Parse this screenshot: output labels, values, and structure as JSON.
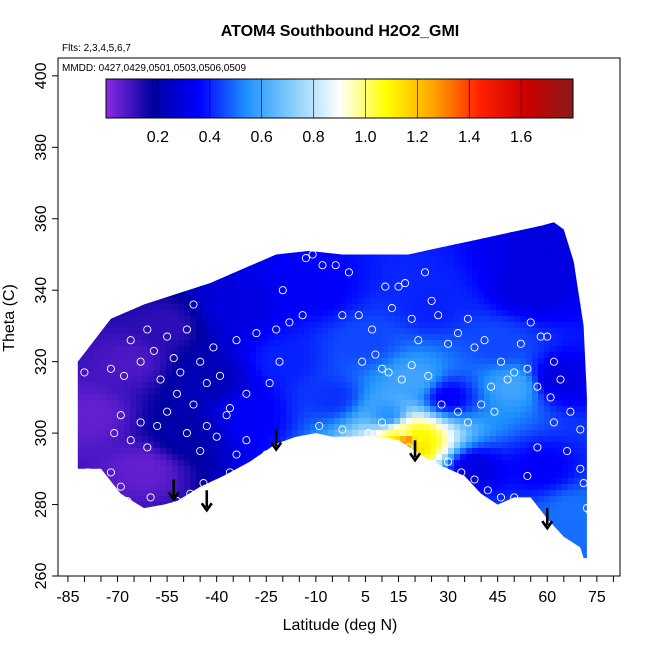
{
  "chart_data": {
    "type": "heatmap",
    "title": "ATOM4 Southbound H2O2_GMI",
    "flights_label": "Flts: 2,3,4,5,6,7",
    "dates_label": "MMDD: 0427,0429,0501,0503,0506,0509",
    "xlabel": "Latitude (deg N)",
    "ylabel": "Theta (C)",
    "xlim": [
      -88,
      82
    ],
    "ylim": [
      260,
      405
    ],
    "x_ticks": [
      -85,
      -70,
      -55,
      -40,
      -25,
      -10,
      5,
      15,
      30,
      45,
      60,
      75
    ],
    "x_tick_labels": [
      "-85",
      "-70",
      "-55",
      "-40",
      "-25",
      "-10",
      "5",
      "15",
      "30",
      "45",
      "60",
      "75"
    ],
    "x_minor_step": 5,
    "y_ticks": [
      260,
      280,
      300,
      320,
      340,
      360,
      380,
      400
    ],
    "y_tick_labels": [
      "260",
      "280",
      "300",
      "320",
      "340",
      "360",
      "380",
      "400"
    ],
    "colorbar": {
      "range": [
        0,
        1.8
      ],
      "ticks": [
        0.2,
        0.4,
        0.6,
        0.8,
        1.0,
        1.2,
        1.4,
        1.6
      ],
      "tick_labels": [
        "0.2",
        "0.4",
        "0.6",
        "0.8",
        "1.0",
        "1.2",
        "1.4",
        "1.6"
      ],
      "colors": [
        "#8a2be2",
        "#0000a0",
        "#0000ff",
        "#1e90ff",
        "#87cefa",
        "#ffffff",
        "#ffff00",
        "#ffa500",
        "#ff2000",
        "#cc0000",
        "#8b1a1a"
      ]
    },
    "lower_boundary_theta": [
      [
        -82,
        290
      ],
      [
        -75,
        290
      ],
      [
        -69,
        283
      ],
      [
        -62,
        279
      ],
      [
        -56,
        280
      ],
      [
        -52,
        281
      ],
      [
        -45,
        285
      ],
      [
        -38,
        288
      ],
      [
        -30,
        292
      ],
      [
        -22,
        297
      ],
      [
        -16,
        299
      ],
      [
        -10,
        300
      ],
      [
        -5,
        299
      ],
      [
        0,
        299
      ],
      [
        5,
        299
      ],
      [
        10,
        299
      ],
      [
        15,
        298
      ],
      [
        20,
        295
      ],
      [
        25,
        292
      ],
      [
        30,
        290
      ],
      [
        35,
        288
      ],
      [
        40,
        283
      ],
      [
        45,
        280
      ],
      [
        50,
        282
      ],
      [
        55,
        282
      ],
      [
        60,
        276
      ],
      [
        65,
        271
      ],
      [
        70,
        268
      ],
      [
        71,
        265
      ]
    ],
    "upper_boundary_theta": [
      [
        -82,
        320
      ],
      [
        -72,
        332
      ],
      [
        -62,
        336
      ],
      [
        -52,
        339
      ],
      [
        -42,
        342
      ],
      [
        -32,
        346
      ],
      [
        -22,
        350
      ],
      [
        -12,
        351
      ],
      [
        -2,
        350
      ],
      [
        8,
        350
      ],
      [
        18,
        350
      ],
      [
        28,
        352
      ],
      [
        38,
        354
      ],
      [
        48,
        356
      ],
      [
        58,
        358
      ],
      [
        62,
        359
      ],
      [
        65,
        357
      ],
      [
        68,
        348
      ],
      [
        71,
        330
      ],
      [
        72,
        310
      ],
      [
        72,
        290
      ],
      [
        72,
        265
      ]
    ],
    "field_samples": [
      {
        "lat": -78,
        "theta": 305,
        "value": 0.05
      },
      {
        "lat": -66,
        "theta": 320,
        "value": 0.08
      },
      {
        "lat": -62,
        "theta": 290,
        "value": 0.05
      },
      {
        "lat": -55,
        "theta": 330,
        "value": 0.12
      },
      {
        "lat": -50,
        "theta": 300,
        "value": 0.2
      },
      {
        "lat": -42,
        "theta": 315,
        "value": 0.22
      },
      {
        "lat": -35,
        "theta": 335,
        "value": 0.3
      },
      {
        "lat": -30,
        "theta": 305,
        "value": 0.35
      },
      {
        "lat": -20,
        "theta": 320,
        "value": 0.4
      },
      {
        "lat": -10,
        "theta": 340,
        "value": 0.35
      },
      {
        "lat": -5,
        "theta": 310,
        "value": 0.42
      },
      {
        "lat": 5,
        "theta": 325,
        "value": 0.45
      },
      {
        "lat": 12,
        "theta": 305,
        "value": 0.55
      },
      {
        "lat": 17,
        "theta": 300,
        "value": 0.95
      },
      {
        "lat": 18,
        "theta": 298,
        "value": 1.4
      },
      {
        "lat": 20,
        "theta": 298,
        "value": 1.05
      },
      {
        "lat": 20,
        "theta": 315,
        "value": 0.6
      },
      {
        "lat": 25,
        "theta": 335,
        "value": 0.4
      },
      {
        "lat": 30,
        "theta": 310,
        "value": 0.35
      },
      {
        "lat": 38,
        "theta": 290,
        "value": 0.3
      },
      {
        "lat": 45,
        "theta": 325,
        "value": 0.45
      },
      {
        "lat": 50,
        "theta": 313,
        "value": 0.6
      },
      {
        "lat": 55,
        "theta": 340,
        "value": 0.3
      },
      {
        "lat": 58,
        "theta": 290,
        "value": 0.35
      },
      {
        "lat": 63,
        "theta": 315,
        "value": 0.3
      },
      {
        "lat": 68,
        "theta": 278,
        "value": 0.5
      },
      {
        "lat": 60,
        "theta": 350,
        "value": 0.3
      }
    ],
    "sample_points": [
      [
        -80,
        317
      ],
      [
        -72,
        318
      ],
      [
        -68,
        316
      ],
      [
        -66,
        326
      ],
      [
        -63,
        320
      ],
      [
        -61,
        329
      ],
      [
        -59,
        323
      ],
      [
        -57,
        315
      ],
      [
        -55,
        327
      ],
      [
        -53,
        321
      ],
      [
        -51,
        317
      ],
      [
        -49,
        329
      ],
      [
        -47,
        336
      ],
      [
        -45,
        320
      ],
      [
        -43,
        314
      ],
      [
        -41,
        324
      ],
      [
        -39,
        316
      ],
      [
        -36,
        307
      ],
      [
        -34,
        326
      ],
      [
        -31,
        311
      ],
      [
        -28,
        328
      ],
      [
        -24,
        314
      ],
      [
        -21,
        320
      ],
      [
        -71,
        300
      ],
      [
        -69,
        305
      ],
      [
        -66,
        298
      ],
      [
        -63,
        303
      ],
      [
        -61,
        296
      ],
      [
        -58,
        302
      ],
      [
        -55,
        306
      ],
      [
        -52,
        311
      ],
      [
        -49,
        300
      ],
      [
        -47,
        308
      ],
      [
        -45,
        295
      ],
      [
        -43,
        302
      ],
      [
        -40,
        299
      ],
      [
        -37,
        305
      ],
      [
        -34,
        294
      ],
      [
        -31,
        298
      ],
      [
        -79,
        289
      ],
      [
        -75,
        287
      ],
      [
        -72,
        289
      ],
      [
        -69,
        285
      ],
      [
        -67,
        281
      ],
      [
        -63,
        278
      ],
      [
        -60,
        282
      ],
      [
        -55,
        278
      ],
      [
        -52,
        281
      ],
      [
        -48,
        283
      ],
      [
        -44,
        286
      ],
      [
        -40,
        284
      ],
      [
        -36,
        289
      ],
      [
        -32,
        287
      ],
      [
        -28,
        291
      ],
      [
        -25,
        294
      ],
      [
        -67,
        271
      ],
      [
        -66,
        273
      ],
      [
        -13,
        349
      ],
      [
        -11,
        350
      ],
      [
        -8,
        347
      ],
      [
        -4,
        347
      ],
      [
        0,
        345
      ],
      [
        -2,
        333
      ],
      [
        3,
        333
      ],
      [
        7,
        329
      ],
      [
        -14,
        333
      ],
      [
        -18,
        331
      ],
      [
        -22,
        329
      ],
      [
        -20,
        340
      ],
      [
        11,
        341
      ],
      [
        13,
        335
      ],
      [
        15,
        341
      ],
      [
        17,
        342
      ],
      [
        19,
        332
      ],
      [
        21,
        326
      ],
      [
        23,
        345
      ],
      [
        25,
        337
      ],
      [
        27,
        333
      ],
      [
        30,
        325
      ],
      [
        33,
        328
      ],
      [
        36,
        332
      ],
      [
        38,
        324
      ],
      [
        41,
        326
      ],
      [
        43,
        313
      ],
      [
        46,
        320
      ],
      [
        50,
        317
      ],
      [
        52,
        325
      ],
      [
        55,
        331
      ],
      [
        58,
        327
      ],
      [
        60,
        327
      ],
      [
        62,
        320
      ],
      [
        64,
        315
      ],
      [
        -9,
        302
      ],
      [
        -2,
        301
      ],
      [
        2,
        298
      ],
      [
        6,
        300
      ],
      [
        10,
        303
      ],
      [
        14,
        297
      ],
      [
        18,
        296
      ],
      [
        22,
        292
      ],
      [
        26,
        291
      ],
      [
        30,
        292
      ],
      [
        34,
        289
      ],
      [
        38,
        287
      ],
      [
        42,
        284
      ],
      [
        46,
        282
      ],
      [
        50,
        282
      ],
      [
        54,
        288
      ],
      [
        57,
        296
      ],
      [
        62,
        303
      ],
      [
        66,
        295
      ],
      [
        70,
        290
      ],
      [
        71,
        286
      ],
      [
        72,
        279
      ],
      [
        73,
        278
      ],
      [
        4,
        320
      ],
      [
        8,
        322
      ],
      [
        10,
        318
      ],
      [
        12,
        317
      ],
      [
        16,
        315
      ],
      [
        19,
        319
      ],
      [
        24,
        316
      ],
      [
        28,
        308
      ],
      [
        33,
        306
      ],
      [
        36,
        303
      ],
      [
        40,
        308
      ],
      [
        44,
        306
      ],
      [
        48,
        315
      ],
      [
        54,
        318
      ],
      [
        57,
        313
      ],
      [
        61,
        310
      ],
      [
        67,
        306
      ],
      [
        70,
        301
      ]
    ],
    "arrows_lat": [
      -53,
      -43,
      -22,
      20,
      60
    ],
    "arrows_theta": [
      287,
      284,
      301,
      298,
      279
    ]
  }
}
